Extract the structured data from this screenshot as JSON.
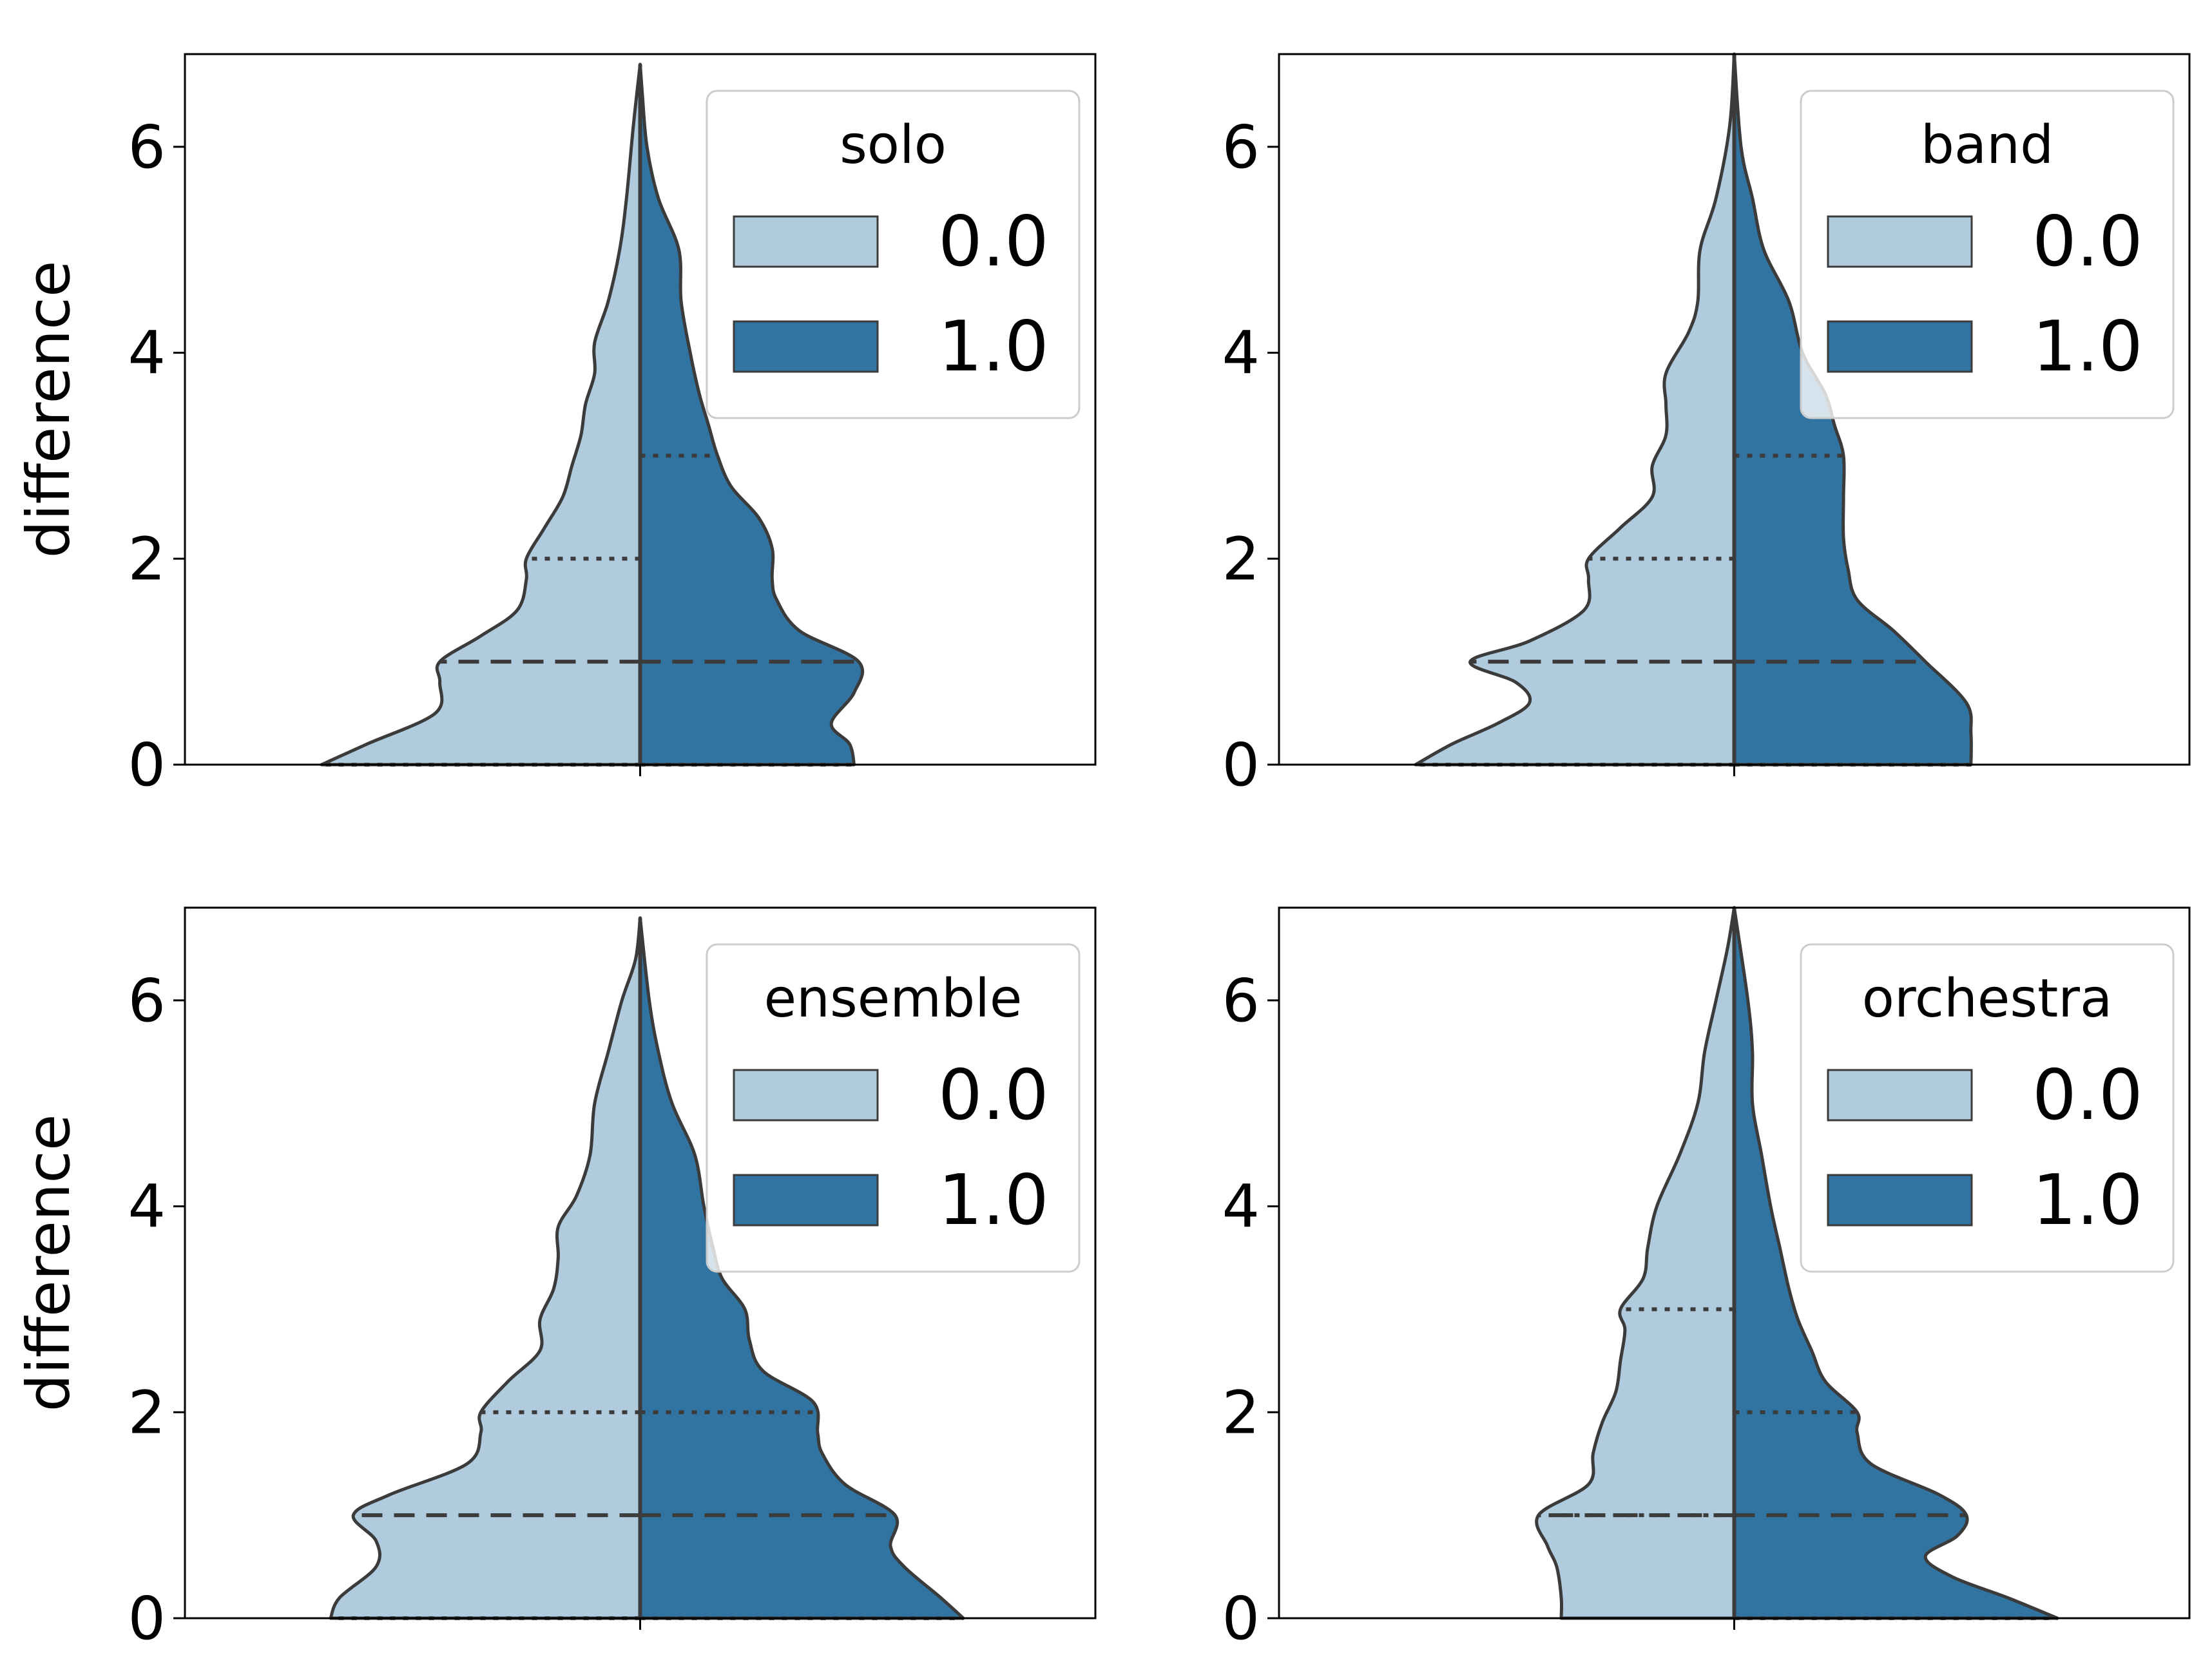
{
  "colors": {
    "group_0": "#afcbdd",
    "group_1": "#3274a1",
    "outline": "#3b3b3b",
    "frame": "#000000"
  },
  "chart_data": [
    {
      "type": "violin",
      "split": true,
      "ylabel": "difference",
      "ylim": [
        0,
        6.9
      ],
      "yticks": [
        "0",
        "2",
        "4",
        "6"
      ],
      "legend": {
        "title": "solo",
        "placement": "upper-right",
        "entries": [
          "0.0",
          "1.0"
        ]
      },
      "series": [
        {
          "name": "0.0",
          "side": "left",
          "max": 6.8,
          "profile": [
            [
              0,
              0.7
            ],
            [
              0.2,
              0.6
            ],
            [
              0.5,
              0.45
            ],
            [
              0.8,
              0.44
            ],
            [
              1.0,
              0.44
            ],
            [
              1.25,
              0.35
            ],
            [
              1.5,
              0.27
            ],
            [
              1.8,
              0.25
            ],
            [
              2.0,
              0.25
            ],
            [
              2.3,
              0.21
            ],
            [
              2.6,
              0.17
            ],
            [
              2.9,
              0.15
            ],
            [
              3.2,
              0.13
            ],
            [
              3.5,
              0.12
            ],
            [
              3.8,
              0.1
            ],
            [
              4.1,
              0.1
            ],
            [
              4.5,
              0.07
            ],
            [
              5.0,
              0.045
            ],
            [
              5.5,
              0.03
            ],
            [
              6.2,
              0.015
            ],
            [
              6.8,
              0
            ]
          ],
          "median": 1,
          "quartiles": [
            0,
            2
          ]
        },
        {
          "name": "1.0",
          "side": "right",
          "max": 6.8,
          "profile": [
            [
              0,
              0.47
            ],
            [
              0.2,
              0.46
            ],
            [
              0.4,
              0.42
            ],
            [
              0.7,
              0.47
            ],
            [
              1.0,
              0.48
            ],
            [
              1.3,
              0.35
            ],
            [
              1.6,
              0.3
            ],
            [
              1.8,
              0.29
            ],
            [
              2.1,
              0.29
            ],
            [
              2.4,
              0.26
            ],
            [
              2.7,
              0.2
            ],
            [
              3.0,
              0.17
            ],
            [
              3.3,
              0.15
            ],
            [
              3.6,
              0.13
            ],
            [
              4.0,
              0.11
            ],
            [
              4.5,
              0.09
            ],
            [
              5.0,
              0.085
            ],
            [
              5.5,
              0.04
            ],
            [
              6.0,
              0.015
            ],
            [
              6.5,
              0.005
            ],
            [
              6.8,
              0
            ]
          ],
          "median": 1,
          "quartiles": [
            0,
            3
          ]
        }
      ]
    },
    {
      "type": "violin",
      "split": true,
      "ylabel": "",
      "ylim": [
        0,
        6.9
      ],
      "yticks": [
        "0",
        "2",
        "4",
        "6"
      ],
      "legend": {
        "title": "band",
        "placement": "upper-right",
        "entries": [
          "0.0",
          "1.0"
        ]
      },
      "series": [
        {
          "name": "0.0",
          "side": "left",
          "max": 6.9,
          "profile": [
            [
              0,
              0.7
            ],
            [
              0.2,
              0.62
            ],
            [
              0.4,
              0.52
            ],
            [
              0.6,
              0.45
            ],
            [
              0.8,
              0.48
            ],
            [
              1.0,
              0.58
            ],
            [
              1.2,
              0.45
            ],
            [
              1.5,
              0.33
            ],
            [
              1.8,
              0.32
            ],
            [
              2.0,
              0.32
            ],
            [
              2.3,
              0.25
            ],
            [
              2.6,
              0.18
            ],
            [
              2.9,
              0.18
            ],
            [
              3.2,
              0.15
            ],
            [
              3.5,
              0.15
            ],
            [
              3.8,
              0.15
            ],
            [
              4.2,
              0.1
            ],
            [
              4.5,
              0.08
            ],
            [
              5.0,
              0.075
            ],
            [
              5.5,
              0.04
            ],
            [
              6.2,
              0.01
            ],
            [
              6.9,
              0
            ]
          ],
          "median": 1,
          "quartiles": [
            0,
            2
          ]
        },
        {
          "name": "1.0",
          "side": "right",
          "max": 6.9,
          "profile": [
            [
              0,
              0.52
            ],
            [
              0.3,
              0.52
            ],
            [
              0.6,
              0.51
            ],
            [
              1.0,
              0.42
            ],
            [
              1.3,
              0.35
            ],
            [
              1.6,
              0.27
            ],
            [
              1.9,
              0.25
            ],
            [
              2.2,
              0.24
            ],
            [
              2.6,
              0.24
            ],
            [
              3.0,
              0.24
            ],
            [
              3.3,
              0.22
            ],
            [
              3.6,
              0.2
            ],
            [
              4.0,
              0.15
            ],
            [
              4.5,
              0.12
            ],
            [
              5.0,
              0.065
            ],
            [
              5.5,
              0.04
            ],
            [
              6.0,
              0.015
            ],
            [
              6.9,
              0
            ]
          ],
          "median": 1,
          "quartiles": [
            0,
            3
          ]
        }
      ]
    },
    {
      "type": "violin",
      "split": true,
      "ylabel": "difference",
      "ylim": [
        0,
        6.9
      ],
      "yticks": [
        "0",
        "2",
        "4",
        "6"
      ],
      "legend": {
        "title": "ensemble",
        "placement": "upper-right",
        "entries": [
          "0.0",
          "1.0"
        ]
      },
      "series": [
        {
          "name": "0.0",
          "side": "left",
          "max": 6.8,
          "profile": [
            [
              0,
              0.68
            ],
            [
              0.2,
              0.66
            ],
            [
              0.5,
              0.58
            ],
            [
              0.75,
              0.58
            ],
            [
              1.0,
              0.63
            ],
            [
              1.2,
              0.55
            ],
            [
              1.5,
              0.38
            ],
            [
              1.8,
              0.35
            ],
            [
              2.0,
              0.35
            ],
            [
              2.3,
              0.29
            ],
            [
              2.6,
              0.22
            ],
            [
              2.9,
              0.22
            ],
            [
              3.2,
              0.19
            ],
            [
              3.5,
              0.18
            ],
            [
              3.8,
              0.18
            ],
            [
              4.1,
              0.14
            ],
            [
              4.5,
              0.11
            ],
            [
              5.0,
              0.1
            ],
            [
              5.5,
              0.07
            ],
            [
              6.0,
              0.04
            ],
            [
              6.4,
              0.01
            ],
            [
              6.8,
              0
            ]
          ],
          "median": 1,
          "quartiles": [
            0,
            2
          ]
        },
        {
          "name": "1.0",
          "side": "right",
          "max": 6.8,
          "profile": [
            [
              0,
              0.71
            ],
            [
              0.2,
              0.66
            ],
            [
              0.5,
              0.58
            ],
            [
              0.7,
              0.55
            ],
            [
              1.0,
              0.56
            ],
            [
              1.3,
              0.45
            ],
            [
              1.6,
              0.4
            ],
            [
              1.8,
              0.39
            ],
            [
              2.1,
              0.38
            ],
            [
              2.4,
              0.27
            ],
            [
              2.7,
              0.24
            ],
            [
              3.0,
              0.23
            ],
            [
              3.3,
              0.18
            ],
            [
              3.6,
              0.16
            ],
            [
              4.0,
              0.14
            ],
            [
              4.5,
              0.12
            ],
            [
              5.0,
              0.07
            ],
            [
              5.5,
              0.04
            ],
            [
              6.0,
              0.02
            ],
            [
              6.8,
              0
            ]
          ],
          "median": 1,
          "quartiles": [
            0,
            2
          ]
        }
      ]
    },
    {
      "type": "violin",
      "split": true,
      "ylabel": "",
      "ylim": [
        0,
        6.9
      ],
      "yticks": [
        "0",
        "2",
        "4",
        "6"
      ],
      "legend": {
        "title": "orchestra",
        "placement": "upper-right",
        "entries": [
          "0.0",
          "1.0"
        ]
      },
      "series": [
        {
          "name": "0.0",
          "side": "left",
          "max": 6.9,
          "profile": [
            [
              0,
              0.38
            ],
            [
              0.2,
              0.38
            ],
            [
              0.5,
              0.39
            ],
            [
              0.7,
              0.41
            ],
            [
              1.0,
              0.43
            ],
            [
              1.3,
              0.32
            ],
            [
              1.6,
              0.31
            ],
            [
              1.9,
              0.29
            ],
            [
              2.2,
              0.26
            ],
            [
              2.5,
              0.25
            ],
            [
              2.8,
              0.24
            ],
            [
              3.0,
              0.25
            ],
            [
              3.3,
              0.2
            ],
            [
              3.6,
              0.19
            ],
            [
              4.0,
              0.17
            ],
            [
              4.5,
              0.12
            ],
            [
              5.0,
              0.08
            ],
            [
              5.5,
              0.065
            ],
            [
              6.0,
              0.04
            ],
            [
              6.5,
              0.015
            ],
            [
              6.9,
              0
            ]
          ],
          "median": 1,
          "quartiles": [
            1,
            3
          ]
        },
        {
          "name": "1.0",
          "side": "right",
          "max": 6.9,
          "profile": [
            [
              0,
              0.71
            ],
            [
              0.2,
              0.6
            ],
            [
              0.4,
              0.48
            ],
            [
              0.6,
              0.42
            ],
            [
              0.8,
              0.49
            ],
            [
              1.0,
              0.51
            ],
            [
              1.2,
              0.45
            ],
            [
              1.5,
              0.3
            ],
            [
              1.8,
              0.27
            ],
            [
              2.0,
              0.27
            ],
            [
              2.3,
              0.2
            ],
            [
              2.6,
              0.17
            ],
            [
              2.9,
              0.14
            ],
            [
              3.2,
              0.12
            ],
            [
              3.6,
              0.1
            ],
            [
              4.0,
              0.08
            ],
            [
              4.5,
              0.06
            ],
            [
              5.0,
              0.04
            ],
            [
              5.5,
              0.04
            ],
            [
              6.0,
              0.03
            ],
            [
              6.9,
              0
            ]
          ],
          "median": 1,
          "quartiles": [
            0,
            2
          ]
        }
      ]
    }
  ]
}
